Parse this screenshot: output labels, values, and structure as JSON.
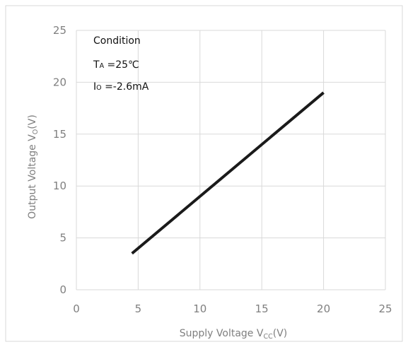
{
  "chart_data": {
    "type": "line",
    "xlabel": {
      "main": "Supply Voltage V",
      "sub": "CC",
      "unit": "(V)"
    },
    "ylabel": {
      "main": "Output Voltage V",
      "sub": "O",
      "unit": "(V)"
    },
    "xlim": [
      0,
      25
    ],
    "ylim": [
      0,
      25
    ],
    "x_ticks": [
      "0",
      "5",
      "10",
      "15",
      "20",
      "25"
    ],
    "y_ticks": [
      "0",
      "5",
      "10",
      "15",
      "20",
      "25"
    ],
    "grid": true,
    "legend": "none",
    "series": [
      {
        "color": "#1a1a1a",
        "x": [
          4.5,
          20
        ],
        "y": [
          3.5,
          19
        ]
      }
    ],
    "annotations": {
      "heading": "Condition",
      "line1": {
        "prefix": "T",
        "sub": "A",
        "text": " =25℃"
      },
      "line2": {
        "prefix": "I",
        "sub": "O",
        "text": " =-2.6mA"
      }
    },
    "colors": {
      "grid": "#d9d9d9",
      "frame": "#d9d9d9",
      "text": "#7f7f7f",
      "line": "#1a1a1a"
    }
  }
}
